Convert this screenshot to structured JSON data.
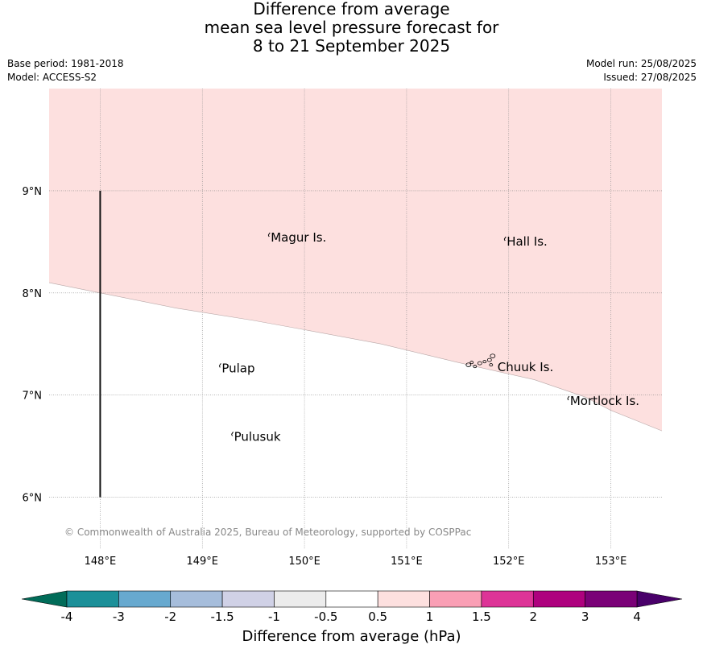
{
  "title": {
    "line1": "Difference from average",
    "line2": "mean sea level pressure forecast for",
    "line3": "8 to 21 September 2025"
  },
  "meta": {
    "base_period": "Base period: 1981-2018",
    "model": "Model: ACCESS-S2",
    "model_run": "Model run: 25/08/2025",
    "issued": "Issued: 27/08/2025"
  },
  "map": {
    "lon_range": [
      147.5,
      153.5
    ],
    "lat_range": [
      5.5,
      10.0
    ],
    "lon_ticks": [
      148,
      149,
      150,
      151,
      152,
      153
    ],
    "lat_ticks": [
      6,
      7,
      8,
      9
    ],
    "lon_tick_labels": [
      "148°E",
      "149°E",
      "150°E",
      "151°E",
      "152°E",
      "153°E"
    ],
    "lat_tick_labels": [
      "6°N",
      "7°N",
      "8°N",
      "9°N"
    ],
    "grid": true,
    "anomaly_region": {
      "category": "0.5 to 1",
      "color": "#fde0df",
      "boundary": [
        [
          147.5,
          8.1
        ],
        [
          148.0,
          8.0
        ],
        [
          148.75,
          7.85
        ],
        [
          149.5,
          7.73
        ],
        [
          150.0,
          7.64
        ],
        [
          150.75,
          7.5
        ],
        [
          151.5,
          7.32
        ],
        [
          152.25,
          7.15
        ],
        [
          152.75,
          6.98
        ],
        [
          153.0,
          6.85
        ],
        [
          153.5,
          6.65
        ]
      ]
    },
    "vertical_line": {
      "lon": 148.0,
      "lat_from": 6.0,
      "lat_to": 9.0
    },
    "places": [
      {
        "name": "Magur Is.",
        "lon": 149.67,
        "lat": 8.55
      },
      {
        "name": "Hall Is.",
        "lon": 151.98,
        "lat": 8.51
      },
      {
        "name": "Pulap",
        "lon": 149.19,
        "lat": 7.27
      },
      {
        "name": "Chuuk Is.",
        "lon": 151.89,
        "lat": 7.28
      },
      {
        "name": "Mortlock Is.",
        "lon": 152.6,
        "lat": 6.95
      },
      {
        "name": "Pulusuk",
        "lon": 149.31,
        "lat": 6.6
      }
    ],
    "copyright": "© Commonwealth of Australia 2025, Bureau of Meteorology, supported by COSPPac"
  },
  "colorbar": {
    "label": "Difference from average (hPa)",
    "tick_labels": [
      "-4",
      "-3",
      "-2",
      "-1.5",
      "-1",
      "-0.5",
      "0.5",
      "1",
      "1.5",
      "2",
      "3",
      "4"
    ],
    "low_extend_color": "#016c59",
    "high_extend_color": "#49006a",
    "colors": [
      "#1c9099",
      "#67a9cf",
      "#a6bddb",
      "#d0d1e6",
      "#ececec",
      "#ffffff",
      "#fde0df",
      "#fa9fb5",
      "#dd3497",
      "#ae017e",
      "#7a0177"
    ]
  }
}
